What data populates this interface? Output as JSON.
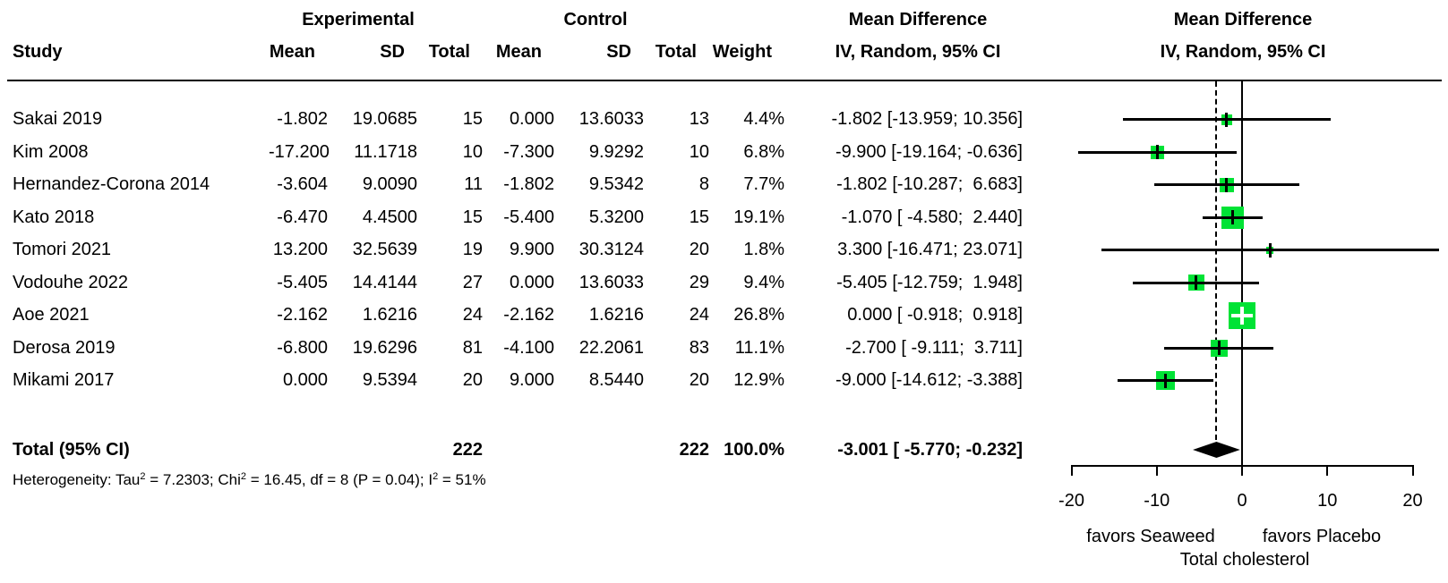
{
  "header": {
    "group_experimental": "Experimental",
    "group_control": "Control",
    "group_md_text": "Mean Difference",
    "group_md_plot": "Mean Difference",
    "col_study": "Study",
    "col_mean_exp": "Mean",
    "col_sd_exp": "SD",
    "col_total_exp": "Total",
    "col_mean_ctrl": "Mean",
    "col_sd_ctrl": "SD",
    "col_total_ctrl": "Total",
    "col_weight": "Weight",
    "col_iv_text": "IV, Random, 95% CI",
    "col_iv_plot": "IV, Random, 95% CI"
  },
  "chart_data": {
    "type": "forest",
    "studies": [
      {
        "study": "Sakai 2019",
        "exp_mean": "-1.802",
        "exp_sd": "19.0685",
        "exp_total": "15",
        "ctrl_mean": "0.000",
        "ctrl_sd": "13.6033",
        "ctrl_total": "13",
        "weight": "4.4%",
        "ci_text": "-1.802 [-13.959; 10.356]",
        "md": -1.802,
        "ci_low": -13.959,
        "ci_high": 10.356,
        "weight_pct": 4.4
      },
      {
        "study": "Kim 2008",
        "exp_mean": "-17.200",
        "exp_sd": "11.1718",
        "exp_total": "10",
        "ctrl_mean": "-7.300",
        "ctrl_sd": "9.9292",
        "ctrl_total": "10",
        "weight": "6.8%",
        "ci_text": "-9.900 [-19.164; -0.636]",
        "md": -9.9,
        "ci_low": -19.164,
        "ci_high": -0.636,
        "weight_pct": 6.8
      },
      {
        "study": "Hernandez-Corona 2014",
        "exp_mean": "-3.604",
        "exp_sd": "9.0090",
        "exp_total": "11",
        "ctrl_mean": "-1.802",
        "ctrl_sd": "9.5342",
        "ctrl_total": "8",
        "weight": "7.7%",
        "ci_text": "-1.802 [-10.287;  6.683]",
        "md": -1.802,
        "ci_low": -10.287,
        "ci_high": 6.683,
        "weight_pct": 7.7
      },
      {
        "study": "Kato 2018",
        "exp_mean": "-6.470",
        "exp_sd": "4.4500",
        "exp_total": "15",
        "ctrl_mean": "-5.400",
        "ctrl_sd": "5.3200",
        "ctrl_total": "15",
        "weight": "19.1%",
        "ci_text": "-1.070 [ -4.580;  2.440]",
        "md": -1.07,
        "ci_low": -4.58,
        "ci_high": 2.44,
        "weight_pct": 19.1
      },
      {
        "study": "Tomori 2021",
        "exp_mean": "13.200",
        "exp_sd": "32.5639",
        "exp_total": "19",
        "ctrl_mean": "9.900",
        "ctrl_sd": "30.3124",
        "ctrl_total": "20",
        "weight": "1.8%",
        "ci_text": " 3.300 [-16.471; 23.071]",
        "md": 3.3,
        "ci_low": -16.471,
        "ci_high": 23.071,
        "weight_pct": 1.8
      },
      {
        "study": "Vodouhe 2022",
        "exp_mean": "-5.405",
        "exp_sd": "14.4144",
        "exp_total": "27",
        "ctrl_mean": "0.000",
        "ctrl_sd": "13.6033",
        "ctrl_total": "29",
        "weight": "9.4%",
        "ci_text": "-5.405 [-12.759;  1.948]",
        "md": -5.405,
        "ci_low": -12.759,
        "ci_high": 1.948,
        "weight_pct": 9.4
      },
      {
        "study": "Aoe 2021",
        "exp_mean": "-2.162",
        "exp_sd": "1.6216",
        "exp_total": "24",
        "ctrl_mean": "-2.162",
        "ctrl_sd": "1.6216",
        "ctrl_total": "24",
        "weight": "26.8%",
        "ci_text": " 0.000 [ -0.918;  0.918]",
        "md": 0.0,
        "ci_low": -0.918,
        "ci_high": 0.918,
        "weight_pct": 26.8
      },
      {
        "study": "Derosa 2019",
        "exp_mean": "-6.800",
        "exp_sd": "19.6296",
        "exp_total": "81",
        "ctrl_mean": "-4.100",
        "ctrl_sd": "22.2061",
        "ctrl_total": "83",
        "weight": "11.1%",
        "ci_text": "-2.700 [ -9.111;  3.711]",
        "md": -2.7,
        "ci_low": -9.111,
        "ci_high": 3.711,
        "weight_pct": 11.1
      },
      {
        "study": "Mikami 2017",
        "exp_mean": "0.000",
        "exp_sd": "9.5394",
        "exp_total": "20",
        "ctrl_mean": "9.000",
        "ctrl_sd": "8.5440",
        "ctrl_total": "20",
        "weight": "12.9%",
        "ci_text": "-9.000 [-14.612; -3.388]",
        "md": -9.0,
        "ci_low": -14.612,
        "ci_high": -3.388,
        "weight_pct": 12.9
      }
    ],
    "total": {
      "label": "Total (95% CI)",
      "exp_total": "222",
      "ctrl_total": "222",
      "weight": "100.0%",
      "ci_text": "-3.001 [ -5.770; -0.232]",
      "md": -3.001,
      "ci_low": -5.77,
      "ci_high": -0.232
    },
    "heterogeneity_parts": [
      "Heterogeneity: Tau",
      "2",
      " = 7.2303; Chi",
      "2",
      " = 16.45, df = 8 (P = 0.04); I",
      "2",
      " = 51%"
    ],
    "x_axis": {
      "min": -20,
      "max": 20,
      "ticks": [
        -20,
        -10,
        0,
        10,
        20
      ],
      "tick_labels": [
        "-20",
        "-10",
        "0",
        "10",
        "20"
      ],
      "zero_line": 0,
      "pooled_line": -3.001
    },
    "footer": {
      "favors_left": "favors Seaweed",
      "favors_right": "favors Placebo",
      "xlabel": "Total cholesterol"
    },
    "colors": {
      "square": "#00E335",
      "diamond": "#000000",
      "line": "#000000"
    }
  }
}
